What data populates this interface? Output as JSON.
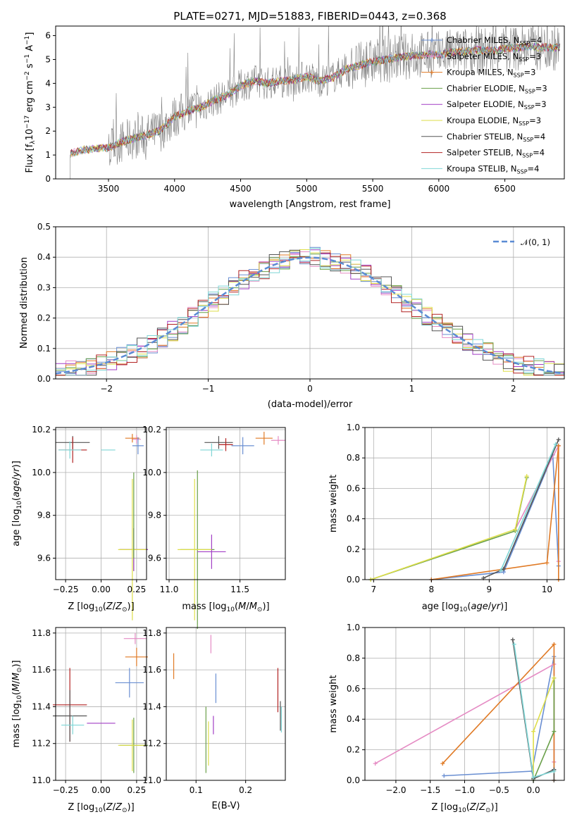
{
  "figure": {
    "title": "PLATE=0271, MJD=51883, FIBERID=0443, z=0.368"
  },
  "colors": {
    "Chabrier MILES": "#6a8fd2",
    "Salpeter MILES": "#e58cc4",
    "Kroupa MILES": "#e07a25",
    "Chabrier ELODIE": "#6aa04a",
    "Salpeter ELODIE": "#a23fc5",
    "Kroupa ELODIE": "#dede4a",
    "Chabrier STELIB": "#555555",
    "Salpeter STELIB": "#b22222",
    "Kroupa STELIB": "#7fd6d6",
    "data": "#808080"
  },
  "chart_data": [
    {
      "id": "spectrum",
      "type": "line",
      "title": "PLATE=0271, MJD=51883, FIBERID=0443, z=0.368",
      "xlabel": "wavelength [Angstrom, rest frame]",
      "ylabel": "Flux [f_λ 10^-17 erg cm^-2 s^-1 A^-1]",
      "xlim": [
        3100,
        6950
      ],
      "ylim": [
        0,
        6.4
      ],
      "xticks": [
        3500,
        4000,
        4500,
        5000,
        5500,
        6000,
        6500
      ],
      "yticks": [
        0,
        1,
        2,
        3,
        4,
        5,
        6
      ],
      "legend_position": "top-right",
      "legend": [
        {
          "label": "Chabrier MILES, N_SSP=4",
          "text": "Chabrier MILES, N",
          "sub": "SSP",
          "tail": "=4",
          "color_key": "Chabrier MILES",
          "marker": "+"
        },
        {
          "label": "Salpeter MILES, N_SSP=3",
          "text": "Salpeter MILES, N",
          "sub": "SSP",
          "tail": "=3",
          "color_key": "Salpeter MILES",
          "marker": "+"
        },
        {
          "label": "Kroupa MILES, N_SSP=3",
          "text": "Kroupa MILES, N",
          "sub": "SSP",
          "tail": "=3",
          "color_key": "Kroupa MILES",
          "marker": "+"
        },
        {
          "label": "Chabrier ELODIE, N_SSP=3",
          "text": "Chabrier ELODIE, N",
          "sub": "SSP",
          "tail": "=3",
          "color_key": "Chabrier ELODIE",
          "marker": "+"
        },
        {
          "label": "Salpeter ELODIE, N_SSP=3",
          "text": "Salpeter ELODIE, N",
          "sub": "SSP",
          "tail": "=3",
          "color_key": "Salpeter ELODIE",
          "marker": "+"
        },
        {
          "label": "Kroupa ELODIE, N_SSP=3",
          "text": "Kroupa ELODIE, N",
          "sub": "SSP",
          "tail": "=3",
          "color_key": "Kroupa ELODIE",
          "marker": "+"
        },
        {
          "label": "Chabrier STELIB, N_SSP=4",
          "text": "Chabrier STELIB, N",
          "sub": "SSP",
          "tail": "=4",
          "color_key": "Chabrier STELIB",
          "marker": "+"
        },
        {
          "label": "Salpeter STELIB, N_SSP=4",
          "text": "Salpeter STELIB, N",
          "sub": "SSP",
          "tail": "=4",
          "color_key": "Salpeter STELIB",
          "marker": "+"
        },
        {
          "label": "Kroupa STELIB, N_SSP=4",
          "text": "Kroupa STELIB, N",
          "sub": "SSP",
          "tail": "=4",
          "color_key": "Kroupa STELIB",
          "marker": "+"
        }
      ],
      "continuum": {
        "x": [
          3210,
          3300,
          3400,
          3500,
          3600,
          3700,
          3800,
          3900,
          4000,
          4100,
          4200,
          4300,
          4400,
          4500,
          4600,
          4700,
          4800,
          4900,
          5000,
          5100,
          5200,
          5300,
          5400,
          5500,
          5600,
          5700,
          5800,
          5900,
          6000,
          6100,
          6200,
          6300,
          6400,
          6500,
          6600,
          6700,
          6800
        ],
        "y": [
          1.05,
          1.2,
          1.25,
          1.3,
          1.55,
          1.7,
          1.85,
          2.05,
          2.6,
          2.85,
          3.0,
          3.3,
          3.5,
          3.9,
          4.1,
          4.0,
          4.1,
          4.15,
          4.3,
          4.1,
          4.25,
          4.6,
          4.75,
          4.9,
          5.0,
          5.1,
          5.15,
          5.2,
          5.2,
          5.3,
          5.35,
          5.4,
          5.35,
          5.45,
          5.5,
          5.55,
          5.5
        ]
      }
    },
    {
      "id": "residuals",
      "type": "step",
      "xlabel": "(data-model)/error",
      "ylabel": "Normed distribution",
      "xlim": [
        -2.5,
        2.5
      ],
      "ylim": [
        0,
        0.5
      ],
      "xticks": [
        -2,
        -1,
        0,
        1,
        2
      ],
      "xticklabels": [
        "−2",
        "−1",
        "0",
        "1",
        "2"
      ],
      "yticks": [
        0,
        0.1,
        0.2,
        0.3,
        0.4,
        0.5
      ],
      "gaussian_label": "𝒩(0, 1)",
      "grid": true
    },
    {
      "id": "age_vs_Z",
      "type": "errorbar",
      "xlabel": "Z [log10(Z/Z⊙)]",
      "ylabel": "age [log10(age/yr)]",
      "xlim": [
        -0.32,
        0.32
      ],
      "ylim": [
        9.5,
        10.21
      ],
      "xticks": [
        -0.25,
        0,
        0.25
      ],
      "xticklabels": [
        "−0.25",
        "0.00",
        "0.25"
      ],
      "yticks": [
        9.6,
        9.8,
        10.0,
        10.2
      ],
      "points": [
        {
          "color_key": "Salpeter MILES",
          "x": 0.25,
          "y": 10.155,
          "xerr": 0.03,
          "yerr": 0.02
        },
        {
          "color_key": "Kroupa MILES",
          "x": 0.22,
          "y": 10.16,
          "xerr": 0.05,
          "yerr": 0.02
        },
        {
          "color_key": "Chabrier MILES",
          "x": 0.26,
          "y": 10.125,
          "xerr": 0.04,
          "yerr": 0.04
        },
        {
          "color_key": "Chabrier STELIB",
          "x": -0.2,
          "y": 10.14,
          "xerr": 0.12,
          "yerr": 0.03
        },
        {
          "color_key": "Salpeter STELIB",
          "x": -0.2,
          "y": 10.105,
          "xerr": 0.1,
          "yerr": 0.06
        },
        {
          "color_key": "Kroupa STELIB",
          "x": -0.22,
          "y": 10.105,
          "xerr": 0.08,
          "yerr": 0.04
        },
        {
          "color_key": "Kroupa STELIB",
          "x": 0.05,
          "y": 10.105,
          "xerr": 0.05,
          "yerr": 0.0
        },
        {
          "color_key": "Chabrier ELODIE",
          "x": 0.23,
          "y": 9.64,
          "xerr": 0.1,
          "yerr": 0.1
        },
        {
          "color_key": "Salpeter ELODIE",
          "x": 0.23,
          "y": 9.64,
          "xerr": 0.1,
          "yerr": 0.1
        },
        {
          "color_key": "Kroupa ELODIE",
          "x": 0.22,
          "y": 9.64,
          "xerr": 0.1,
          "yerr": 0.33
        },
        {
          "color_key": "Chabrier ELODIE",
          "x": 0.23,
          "y": 9.8,
          "xerr": 0.0,
          "yerr": 0.2
        }
      ]
    },
    {
      "id": "age_vs_mass",
      "type": "errorbar",
      "xlabel": "mass [log10(M/M⊙)]",
      "xlim": [
        10.98,
        11.82
      ],
      "ylim": [
        9.5,
        10.21
      ],
      "xticks": [
        11.0,
        11.5
      ],
      "xticklabels": [
        "11.0",
        "11.5"
      ],
      "yticks": [
        9.6,
        9.8,
        10.0,
        10.2
      ],
      "points": [
        {
          "color_key": "Salpeter MILES",
          "x": 11.77,
          "y": 10.15,
          "xerr": 0.05,
          "yerr": 0.02
        },
        {
          "color_key": "Kroupa MILES",
          "x": 11.67,
          "y": 10.16,
          "xerr": 0.06,
          "yerr": 0.03
        },
        {
          "color_key": "Chabrier MILES",
          "x": 11.52,
          "y": 10.125,
          "xerr": 0.08,
          "yerr": 0.04
        },
        {
          "color_key": "Chabrier STELIB",
          "x": 11.35,
          "y": 10.14,
          "xerr": 0.1,
          "yerr": 0.03
        },
        {
          "color_key": "Salpeter STELIB",
          "x": 11.4,
          "y": 10.13,
          "xerr": 0.05,
          "yerr": 0.03
        },
        {
          "color_key": "Kroupa STELIB",
          "x": 11.3,
          "y": 10.105,
          "xerr": 0.08,
          "yerr": 0.03
        },
        {
          "color_key": "Chabrier ELODIE",
          "x": 11.2,
          "y": 9.64,
          "xerr": 0.12,
          "yerr": 0.37
        },
        {
          "color_key": "Salpeter ELODIE",
          "x": 11.3,
          "y": 9.63,
          "xerr": 0.1,
          "yerr": 0.08
        },
        {
          "color_key": "Kroupa ELODIE",
          "x": 11.18,
          "y": 9.64,
          "xerr": 0.12,
          "yerr": 0.33
        }
      ]
    },
    {
      "id": "massweight_vs_age",
      "type": "line",
      "xlabel": "age [log10(age/yr)]",
      "ylabel": "mass weight",
      "xlim": [
        6.85,
        10.3
      ],
      "ylim": [
        0,
        1.0
      ],
      "xticks": [
        7,
        8,
        9,
        10
      ],
      "yticks": [
        0,
        0.2,
        0.4,
        0.6,
        0.8,
        1.0
      ],
      "series": [
        {
          "color_key": "Chabrier MILES",
          "x": [
            8.0,
            9.25,
            10.1,
            10.2
          ],
          "y": [
            0.0,
            0.05,
            0.82,
            0.09
          ]
        },
        {
          "color_key": "Salpeter MILES",
          "x": [
            9.45,
            10.2,
            10.2
          ],
          "y": [
            0.33,
            0.88,
            0.12
          ]
        },
        {
          "color_key": "Kroupa MILES",
          "x": [
            8.0,
            10.0,
            10.2,
            10.2
          ],
          "y": [
            0.0,
            0.11,
            0.88,
            0.0
          ]
        },
        {
          "color_key": "Chabrier ELODIE",
          "x": [
            6.95,
            9.45,
            9.65
          ],
          "y": [
            0.0,
            0.32,
            0.67
          ]
        },
        {
          "color_key": "Kroupa ELODIE",
          "x": [
            6.95,
            9.45,
            9.65
          ],
          "y": [
            0.0,
            0.33,
            0.68
          ]
        },
        {
          "color_key": "Chabrier STELIB",
          "x": [
            8.9,
            9.25,
            10.2
          ],
          "y": [
            0.01,
            0.07,
            0.92
          ]
        },
        {
          "color_key": "Kroupa STELIB",
          "x": [
            9.2,
            10.15
          ],
          "y": [
            0.06,
            0.89
          ]
        }
      ]
    },
    {
      "id": "mass_vs_Z",
      "type": "errorbar",
      "xlabel": "Z [log10(Z/Z⊙)]",
      "ylabel": "mass [log10(M/M⊙)]",
      "xlim": [
        -0.32,
        0.32
      ],
      "ylim": [
        11.0,
        11.83
      ],
      "xticks": [
        -0.25,
        0,
        0.25
      ],
      "xticklabels": [
        "−0.25",
        "0.00",
        "0.25"
      ],
      "yticks": [
        11.0,
        11.2,
        11.4,
        11.6,
        11.8
      ],
      "points": [
        {
          "color_key": "Salpeter MILES",
          "x": 0.24,
          "y": 11.77,
          "xerr": 0.08,
          "yerr": 0.03
        },
        {
          "color_key": "Kroupa MILES",
          "x": 0.25,
          "y": 11.67,
          "xerr": 0.08,
          "yerr": 0.05
        },
        {
          "color_key": "Chabrier MILES",
          "x": 0.2,
          "y": 11.53,
          "xerr": 0.1,
          "yerr": 0.08
        },
        {
          "color_key": "Salpeter STELIB",
          "x": -0.22,
          "y": 11.41,
          "xerr": 0.12,
          "yerr": 0.2
        },
        {
          "color_key": "Chabrier STELIB",
          "x": -0.22,
          "y": 11.35,
          "xerr": 0.12,
          "yerr": 0.14
        },
        {
          "color_key": "Salpeter ELODIE",
          "x": 0.0,
          "y": 11.31,
          "xerr": 0.1,
          "yerr": 0.0
        },
        {
          "color_key": "Kroupa STELIB",
          "x": -0.2,
          "y": 11.3,
          "xerr": 0.08,
          "yerr": 0.05
        },
        {
          "color_key": "Chabrier ELODIE",
          "x": 0.23,
          "y": 11.19,
          "xerr": 0.1,
          "yerr": 0.15
        },
        {
          "color_key": "Kroupa ELODIE",
          "x": 0.22,
          "y": 11.19,
          "xerr": 0.1,
          "yerr": 0.14
        }
      ]
    },
    {
      "id": "mass_vs_EBV",
      "type": "errorbar",
      "xlabel": "E(B-V)",
      "xlim": [
        0.04,
        0.28
      ],
      "ylim": [
        11.0,
        11.83
      ],
      "xticks": [
        0.1,
        0.2
      ],
      "xticklabels": [
        "0.1",
        "0.2"
      ],
      "yticks": [
        11.0,
        11.2,
        11.4,
        11.6,
        11.8
      ],
      "points": [
        {
          "color_key": "Kroupa MILES",
          "x": 0.055,
          "y": 11.62,
          "xerr": 0.0,
          "yerr": 0.07
        },
        {
          "color_key": "Salpeter MILES",
          "x": 0.13,
          "y": 11.74,
          "xerr": 0.0,
          "yerr": 0.05
        },
        {
          "color_key": "Chabrier MILES",
          "x": 0.14,
          "y": 11.5,
          "xerr": 0.0,
          "yerr": 0.08
        },
        {
          "color_key": "Salpeter ELODIE",
          "x": 0.135,
          "y": 11.3,
          "xerr": 0.0,
          "yerr": 0.05
        },
        {
          "color_key": "Chabrier ELODIE",
          "x": 0.12,
          "y": 11.22,
          "xerr": 0.0,
          "yerr": 0.18
        },
        {
          "color_key": "Kroupa ELODIE",
          "x": 0.125,
          "y": 11.2,
          "xerr": 0.0,
          "yerr": 0.12
        },
        {
          "color_key": "Salpeter STELIB",
          "x": 0.265,
          "y": 11.49,
          "xerr": 0.0,
          "yerr": 0.12
        },
        {
          "color_key": "Chabrier STELIB",
          "x": 0.27,
          "y": 11.35,
          "xerr": 0.0,
          "yerr": 0.08
        },
        {
          "color_key": "Kroupa STELIB",
          "x": 0.272,
          "y": 11.33,
          "xerr": 0.0,
          "yerr": 0.07
        }
      ]
    },
    {
      "id": "massweight_vs_Z",
      "type": "line",
      "xlabel": "Z [log10(Z/Z⊙)]",
      "ylabel": "mass weight",
      "xlim": [
        -2.45,
        0.45
      ],
      "ylim": [
        0,
        1.0
      ],
      "xticks": [
        -2.0,
        -1.5,
        -1.0,
        -0.5,
        0.0
      ],
      "xticklabels": [
        "−2.0",
        "−1.5",
        "−1.0",
        "−0.5",
        "0.0"
      ],
      "yticks": [
        0,
        0.2,
        0.4,
        0.6,
        0.8,
        1.0
      ],
      "series": [
        {
          "color_key": "Chabrier MILES",
          "x": [
            -1.3,
            -0.02,
            0.3,
            0.3
          ],
          "y": [
            0.03,
            0.06,
            0.81,
            0.07
          ]
        },
        {
          "color_key": "Salpeter MILES",
          "x": [
            -2.3,
            0.3,
            0.3
          ],
          "y": [
            0.11,
            0.76,
            0.12
          ]
        },
        {
          "color_key": "Kroupa MILES",
          "x": [
            -1.32,
            0.3,
            0.3
          ],
          "y": [
            0.11,
            0.89,
            0.0
          ]
        },
        {
          "color_key": "Chabrier ELODIE",
          "x": [
            0.0,
            0.3,
            0.3
          ],
          "y": [
            0.0,
            0.32,
            0.67
          ]
        },
        {
          "color_key": "Kroupa ELODIE",
          "x": [
            0.0,
            0.0,
            0.3
          ],
          "y": [
            0.01,
            0.32,
            0.67
          ]
        },
        {
          "color_key": "Chabrier STELIB",
          "x": [
            -0.3,
            0.0,
            0.3,
            0.3
          ],
          "y": [
            0.92,
            0.01,
            0.07,
            0.0
          ]
        },
        {
          "color_key": "Kroupa STELIB",
          "x": [
            -0.28,
            0.0,
            0.3
          ],
          "y": [
            0.89,
            0.02,
            0.06
          ]
        }
      ]
    }
  ]
}
